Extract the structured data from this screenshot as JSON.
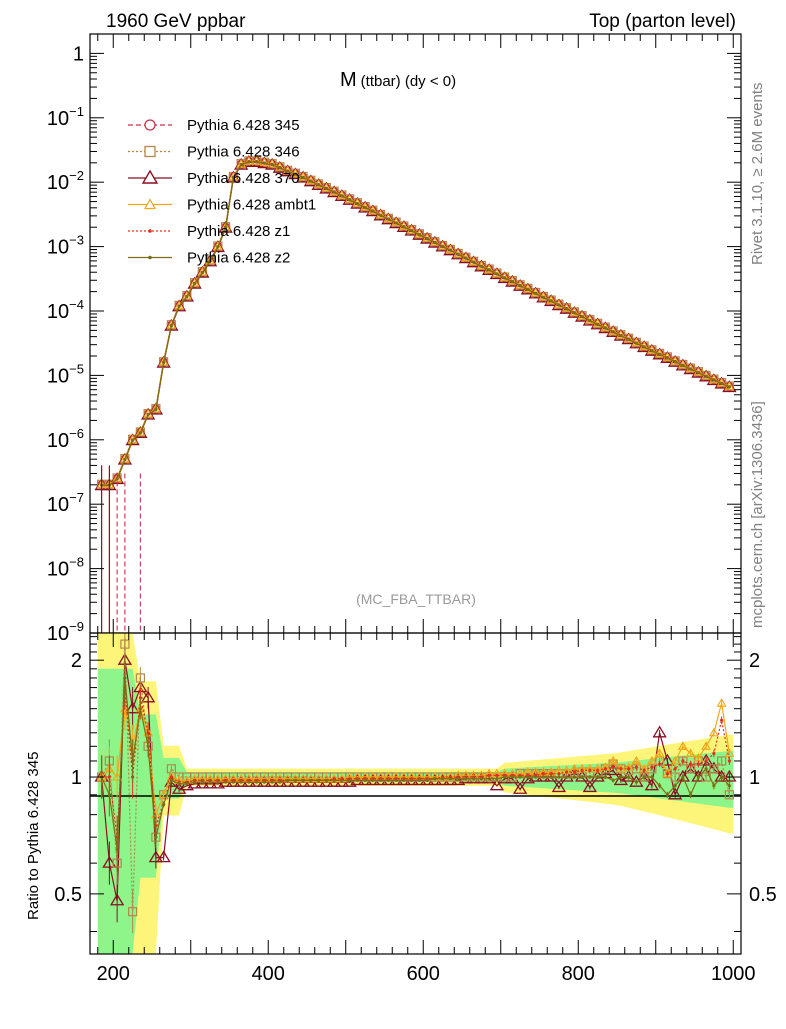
{
  "header": {
    "left": "1960 GeV ppbar",
    "right": "Top (parton level)"
  },
  "side": {
    "rivet": "Rivet 3.1.10, ≥ 2.6M events",
    "mcplots": "mcplots.cern.ch [arXiv:1306.3436]"
  },
  "plot_title": {
    "main": "M",
    "sub": "(ttbar) (dy < 0)"
  },
  "analysis_tag": "(MC_FBA_TTBAR)",
  "ratio_ylabel": "Ratio to Pythia 6.428 345",
  "colors": {
    "s345": "#c0344f",
    "s346": "#b5874a",
    "s370": "#8b0f23",
    "ambt1": "#f0a81a",
    "z1": "#e3301c",
    "z2": "#7d6e14",
    "band_green": "#8ef58a",
    "band_yellow": "#fdf57a"
  },
  "chart_data": [
    {
      "type": "line",
      "yscale": "log",
      "xlim": [
        170,
        1010
      ],
      "ylim": [
        1e-09,
        2
      ],
      "title": "M (ttbar) (dy < 0)",
      "ytick_labels": [
        "1",
        "10^-1",
        "10^-2",
        "10^-3",
        "10^-4",
        "10^-5",
        "10^-6",
        "10^-7",
        "10^-8",
        "10^-9"
      ],
      "legend": "top-left",
      "series": [
        {
          "name": "Pythia 6.428 345",
          "marker": "circle",
          "dash": "dashed"
        },
        {
          "name": "Pythia 6.428 346",
          "marker": "square",
          "dash": "dotted"
        },
        {
          "name": "Pythia 6.428 370",
          "marker": "triangle",
          "dash": "solid"
        },
        {
          "name": "Pythia 6.428 ambt1",
          "marker": "triangle-small",
          "dash": "solid"
        },
        {
          "name": "Pythia 6.428 z1",
          "marker": "dot",
          "dash": "dotted"
        },
        {
          "name": "Pythia 6.428 z2",
          "marker": "dot",
          "dash": "solid"
        }
      ],
      "x": [
        185,
        195,
        205,
        215,
        225,
        235,
        245,
        255,
        265,
        275,
        285,
        295,
        305,
        315,
        325,
        335,
        345,
        355,
        365,
        375,
        385,
        395,
        405,
        415,
        425,
        435,
        445,
        455,
        465,
        475,
        485,
        495,
        505,
        515,
        525,
        535,
        545,
        555,
        565,
        575,
        585,
        595,
        605,
        615,
        625,
        635,
        645,
        655,
        665,
        675,
        685,
        695,
        705,
        715,
        725,
        735,
        745,
        755,
        765,
        775,
        785,
        795,
        805,
        815,
        825,
        835,
        845,
        855,
        865,
        875,
        885,
        895,
        905,
        915,
        925,
        935,
        945,
        955,
        965,
        975,
        985,
        995
      ],
      "values": [
        2e-07,
        2e-07,
        2.5e-07,
        5e-07,
        1e-06,
        1.3e-06,
        2.5e-06,
        3e-06,
        1.6e-05,
        6e-05,
        0.00012,
        0.00017,
        0.00027,
        0.0004,
        0.0006,
        0.001,
        0.002,
        0.012,
        0.019,
        0.021,
        0.021,
        0.02,
        0.019,
        0.017,
        0.015,
        0.0135,
        0.012,
        0.0105,
        0.0092,
        0.0081,
        0.0071,
        0.0062,
        0.0054,
        0.0047,
        0.0041,
        0.0036,
        0.0031,
        0.0027,
        0.00235,
        0.00205,
        0.0018,
        0.00155,
        0.00135,
        0.00117,
        0.00102,
        0.00089,
        0.00077,
        0.00067,
        0.00058,
        0.0005,
        0.00044,
        0.00038,
        0.00033,
        0.00029,
        0.00025,
        0.00022,
        0.00019,
        0.000165,
        0.000145,
        0.000125,
        0.00011,
        9.5e-05,
        8.3e-05,
        7.2e-05,
        6.3e-05,
        5.5e-05,
        4.8e-05,
        4.2e-05,
        3.7e-05,
        3.2e-05,
        2.8e-05,
        2.45e-05,
        2.15e-05,
        1.9e-05,
        1.65e-05,
        1.45e-05,
        1.27e-05,
        1.12e-05,
        9.8e-06,
        8.6e-06,
        7.6e-06,
        6.7e-06
      ]
    },
    {
      "type": "line",
      "ylim": [
        0.35,
        2.35
      ],
      "xlim": [
        170,
        1010
      ],
      "yscale": "log",
      "ylabel": "Ratio to Pythia 6.428 345",
      "xticks": [
        200,
        400,
        600,
        800,
        1000
      ],
      "yticks": [
        0.5,
        1,
        2
      ],
      "x": [
        185,
        195,
        205,
        215,
        225,
        235,
        245,
        255,
        265,
        275,
        285,
        295,
        305,
        315,
        325,
        335,
        345,
        355,
        365,
        375,
        385,
        395,
        405,
        415,
        425,
        435,
        445,
        455,
        465,
        475,
        485,
        495,
        505,
        515,
        525,
        535,
        545,
        555,
        565,
        575,
        585,
        595,
        605,
        615,
        625,
        635,
        645,
        655,
        665,
        675,
        685,
        695,
        705,
        715,
        725,
        735,
        745,
        755,
        765,
        775,
        785,
        795,
        805,
        815,
        825,
        835,
        845,
        855,
        865,
        875,
        885,
        895,
        905,
        915,
        925,
        935,
        945,
        955,
        965,
        975,
        985,
        995
      ],
      "series": [
        {
          "name": "Pythia 6.428 370",
          "values": [
            1.0,
            0.6,
            0.48,
            2.0,
            1.5,
            1.7,
            1.6,
            0.62,
            0.62,
            0.97,
            0.93,
            0.95,
            0.96,
            0.96,
            0.96,
            0.96,
            0.97,
            0.97,
            0.97,
            0.97,
            0.97,
            0.97,
            0.97,
            0.97,
            0.97,
            0.97,
            0.97,
            0.97,
            0.97,
            0.97,
            0.97,
            0.97,
            0.97,
            0.98,
            0.98,
            0.98,
            0.98,
            0.98,
            0.98,
            0.98,
            0.98,
            0.98,
            0.98,
            0.98,
            0.98,
            0.98,
            0.98,
            0.99,
            0.99,
            0.99,
            0.99,
            0.95,
            0.99,
            0.99,
            0.93,
            0.99,
            1.0,
            1.0,
            1.0,
            0.94,
            1.0,
            1.02,
            1.0,
            0.94,
            1.0,
            1.02,
            1.04,
            0.98,
            1.0,
            0.97,
            1.0,
            0.95,
            1.3,
            1.1,
            0.9,
            1.0,
            1.05,
            1.0,
            1.1,
            1.05,
            1.0,
            1.0
          ]
        },
        {
          "name": "Pythia 6.428 346",
          "values": [
            1.0,
            1.1,
            0.6,
            2.2,
            0.45,
            1.8,
            1.2,
            0.7,
            0.9,
            1.05,
            1.0,
            1.0,
            1.0,
            1.0,
            1.0,
            1.0,
            1.0,
            1.0,
            1.0,
            1.0,
            1.0,
            1.0,
            1.0,
            1.0,
            1.0,
            1.0,
            1.0,
            1.0,
            1.0,
            1.0,
            1.0,
            1.0,
            1.0,
            1.0,
            1.0,
            1.0,
            1.0,
            1.0,
            1.0,
            1.0,
            1.0,
            1.0,
            1.0,
            1.0,
            1.0,
            1.0,
            1.0,
            1.0,
            1.0,
            1.0,
            1.0,
            1.0,
            1.0,
            1.0,
            1.02,
            1.02,
            1.02,
            1.02,
            1.02,
            1.02,
            1.02,
            1.02,
            1.03,
            1.03,
            1.03,
            1.05,
            1.08,
            1.05,
            1.04,
            1.05,
            1.0,
            1.05,
            1.1,
            1.02,
            1.0,
            1.1,
            1.05,
            1.1,
            1.0,
            1.05,
            1.1,
            0.9
          ]
        },
        {
          "name": "Pythia 6.428 ambt1",
          "values": [
            1.0,
            1.05,
            1.0,
            1.5,
            1.2,
            1.5,
            1.3,
            0.8,
            0.9,
            1.0,
            0.98,
            0.98,
            0.99,
            0.99,
            0.99,
            0.99,
            0.99,
            0.99,
            0.99,
            0.99,
            0.99,
            0.99,
            0.99,
            0.99,
            0.99,
            0.99,
            0.99,
            0.99,
            0.99,
            0.99,
            0.99,
            0.99,
            1.0,
            1.0,
            1.0,
            1.0,
            1.0,
            1.0,
            1.0,
            1.0,
            1.0,
            1.0,
            1.0,
            1.0,
            1.0,
            1.0,
            1.01,
            1.01,
            1.01,
            1.01,
            1.02,
            1.02,
            1.02,
            1.02,
            1.02,
            1.03,
            1.03,
            1.03,
            1.03,
            1.04,
            1.04,
            1.05,
            1.05,
            1.05,
            1.05,
            1.06,
            1.1,
            1.05,
            1.06,
            1.1,
            1.05,
            1.1,
            1.15,
            1.02,
            1.1,
            1.2,
            1.15,
            1.12,
            1.2,
            1.3,
            1.55,
            1.15
          ]
        },
        {
          "name": "Pythia 6.428 z1",
          "values": [
            1.0,
            1.0,
            0.7,
            1.7,
            1.0,
            1.6,
            1.3,
            0.75,
            0.85,
            1.0,
            0.97,
            0.97,
            0.98,
            0.98,
            0.98,
            0.98,
            0.98,
            0.98,
            0.98,
            0.98,
            0.98,
            0.98,
            0.98,
            0.98,
            0.98,
            0.98,
            0.98,
            0.98,
            0.98,
            0.98,
            0.99,
            0.99,
            0.99,
            0.99,
            0.99,
            0.99,
            0.99,
            0.99,
            0.99,
            0.99,
            0.99,
            0.99,
            0.99,
            0.99,
            1.0,
            1.0,
            1.0,
            1.0,
            1.0,
            1.0,
            1.01,
            1.01,
            1.01,
            1.01,
            1.01,
            1.01,
            1.01,
            1.02,
            1.02,
            1.02,
            1.03,
            1.03,
            1.04,
            1.04,
            1.04,
            1.05,
            1.06,
            1.05,
            1.05,
            1.06,
            1.04,
            1.06,
            1.08,
            1.02,
            1.05,
            1.1,
            1.08,
            1.08,
            1.1,
            1.15,
            1.4,
            1.1
          ]
        },
        {
          "name": "Pythia 6.428 z2",
          "values": [
            1.0,
            0.9,
            0.65,
            1.8,
            1.1,
            1.5,
            1.2,
            0.7,
            0.85,
            0.98,
            0.96,
            0.96,
            0.97,
            0.97,
            0.97,
            0.97,
            0.97,
            0.97,
            0.97,
            0.97,
            0.97,
            0.97,
            0.97,
            0.97,
            0.98,
            0.98,
            0.98,
            0.98,
            0.98,
            0.98,
            0.98,
            0.98,
            0.98,
            0.98,
            0.98,
            0.98,
            0.98,
            0.98,
            0.98,
            0.98,
            0.98,
            0.98,
            0.98,
            0.99,
            0.99,
            0.99,
            0.99,
            0.99,
            0.99,
            0.99,
            0.99,
            0.99,
            1.0,
            1.0,
            1.0,
            1.0,
            1.0,
            1.0,
            1.0,
            1.0,
            1.0,
            1.0,
            1.0,
            1.0,
            1.0,
            1.0,
            0.98,
            1.0,
            1.0,
            0.97,
            1.0,
            1.0,
            0.95,
            0.9,
            0.95,
            1.0,
            0.9,
            1.0,
            1.05,
            0.95,
            1.0,
            0.95
          ]
        }
      ]
    }
  ]
}
